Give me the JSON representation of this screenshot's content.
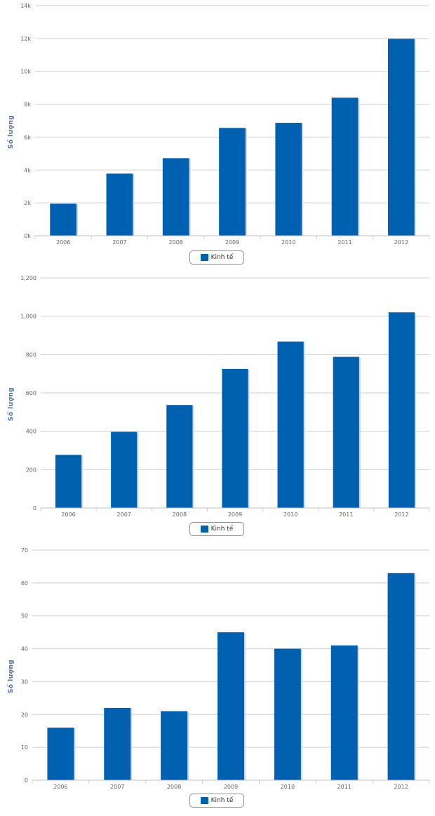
{
  "colors": {
    "bar": "#0061b0",
    "bar_shadow": "#c9d9ee",
    "grid": "#d0d0d0",
    "axis_label": "#4d6fa0",
    "tick": "#666666"
  },
  "chart_data": [
    {
      "type": "bar",
      "categories": [
        "2006",
        "2007",
        "2008",
        "2009",
        "2010",
        "2011",
        "2012"
      ],
      "series": [
        {
          "name": "Kinh tế",
          "values": [
            1950,
            3780,
            4720,
            6560,
            6870,
            8400,
            11980
          ]
        }
      ],
      "ylabel": "Số lượng",
      "ylim": [
        0,
        14000
      ],
      "yticks": [
        "0k",
        "2k",
        "4k",
        "6k",
        "8k",
        "10k",
        "12k",
        "14k"
      ],
      "grid": true,
      "legend": "bottom-center"
    },
    {
      "type": "bar",
      "categories": [
        "2006",
        "2007",
        "2008",
        "2009",
        "2010",
        "2011",
        "2012"
      ],
      "series": [
        {
          "name": "Kinh tế",
          "values": [
            277,
            397,
            537,
            725,
            868,
            788,
            1020
          ]
        }
      ],
      "ylabel": "Số lượng",
      "ylim": [
        0,
        1200
      ],
      "yticks": [
        "0",
        "200",
        "400",
        "600",
        "800",
        "1,000",
        "1,200"
      ],
      "grid": true,
      "legend": "bottom-center"
    },
    {
      "type": "bar",
      "categories": [
        "2006",
        "2007",
        "2008",
        "2009",
        "2010",
        "2011",
        "2012"
      ],
      "series": [
        {
          "name": "Kinh tế",
          "values": [
            16,
            22,
            21,
            45,
            40,
            41,
            63
          ]
        }
      ],
      "ylabel": "Số lượng",
      "ylim": [
        0,
        70
      ],
      "yticks": [
        "0",
        "10",
        "20",
        "30",
        "40",
        "50",
        "60",
        "70"
      ],
      "grid": true,
      "legend": "bottom-center"
    }
  ]
}
